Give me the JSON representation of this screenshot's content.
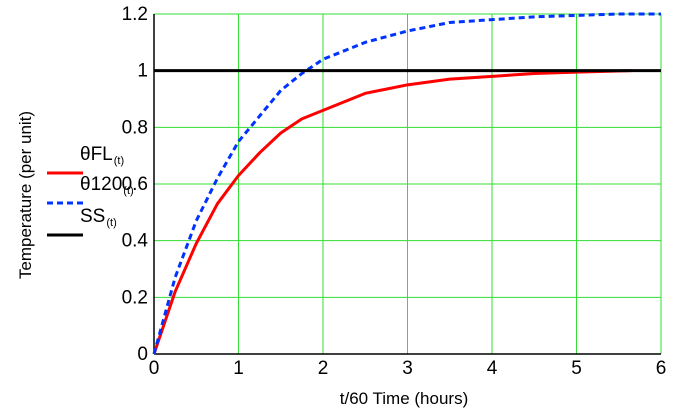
{
  "chart_data": {
    "type": "line",
    "xlabel": "t/60 Time (hours)",
    "ylabel": "Temperature (per unit)",
    "xlim": [
      0,
      6
    ],
    "ylim": [
      0,
      1.2
    ],
    "x_ticks": [
      "0",
      "1",
      "2",
      "3",
      "4",
      "5",
      "6"
    ],
    "y_ticks": [
      "0",
      "0.2",
      "0.4",
      "0.6",
      "0.8",
      "1",
      "1.2"
    ],
    "grid": true,
    "grid_color": "#33dd33",
    "series": [
      {
        "name": "θFL",
        "subscript": "(t)",
        "color": "#ff0000",
        "style": "solid",
        "x_end": 5.65,
        "x": [
          0,
          0.25,
          0.5,
          0.75,
          1,
          1.25,
          1.5,
          1.75,
          2,
          2.5,
          3,
          3.5,
          4,
          4.5,
          5,
          5.65
        ],
        "y": [
          0,
          0.22,
          0.39,
          0.53,
          0.63,
          0.71,
          0.78,
          0.83,
          0.86,
          0.92,
          0.95,
          0.97,
          0.98,
          0.99,
          0.995,
          1.0
        ]
      },
      {
        "name": "θ120",
        "subscript": "(t)",
        "color": "#0033ff",
        "style": "dashed",
        "x": [
          0,
          0.25,
          0.5,
          0.75,
          1,
          1.25,
          1.5,
          1.75,
          2,
          2.5,
          3,
          3.5,
          4,
          4.5,
          5,
          5.5,
          6
        ],
        "y": [
          0,
          0.27,
          0.47,
          0.62,
          0.75,
          0.84,
          0.93,
          0.99,
          1.04,
          1.1,
          1.14,
          1.17,
          1.18,
          1.19,
          1.195,
          1.2,
          1.2
        ]
      },
      {
        "name": "SS",
        "subscript": "(t)",
        "color": "#000000",
        "style": "solid",
        "x": [
          0,
          6
        ],
        "y": [
          1,
          1
        ]
      }
    ],
    "legend_position": "left"
  }
}
